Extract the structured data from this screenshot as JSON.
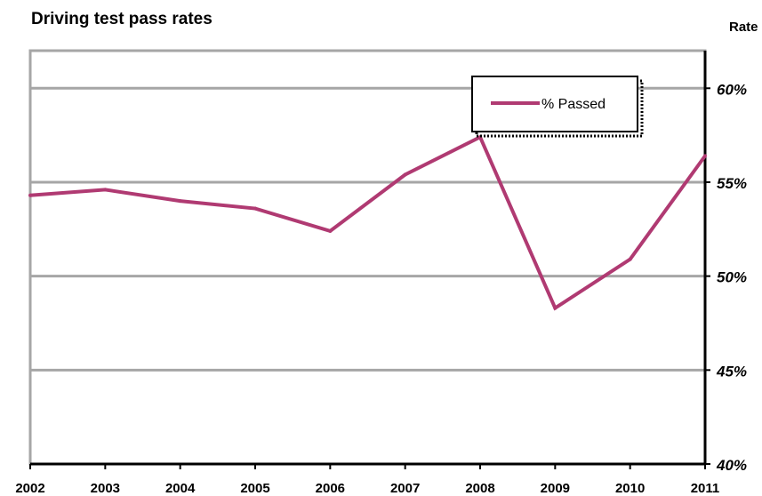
{
  "chart_data": {
    "type": "line",
    "title": "Driving test pass rates",
    "xlabel": "",
    "ylabel": "Rate",
    "x": [
      "2002",
      "2003",
      "2004",
      "2005",
      "2006",
      "2007",
      "2008",
      "2009",
      "2010",
      "2011"
    ],
    "series": [
      {
        "name": "% Passed",
        "color": "#b03a72",
        "values": [
          54.3,
          54.6,
          54.0,
          53.6,
          52.4,
          55.4,
          57.4,
          48.3,
          50.9,
          56.4
        ]
      }
    ],
    "ylim": [
      40,
      62
    ],
    "y_ticks": [
      40,
      45,
      50,
      55,
      60
    ],
    "y_tick_labels": [
      "40%",
      "45%",
      "50%",
      "55%",
      "60%"
    ],
    "y_axis_side": "right",
    "grid": true,
    "legend_position": "top-right"
  },
  "colors": {
    "series": "#b03a72",
    "gridline": "#a6a6a6",
    "axis": "#000000"
  }
}
